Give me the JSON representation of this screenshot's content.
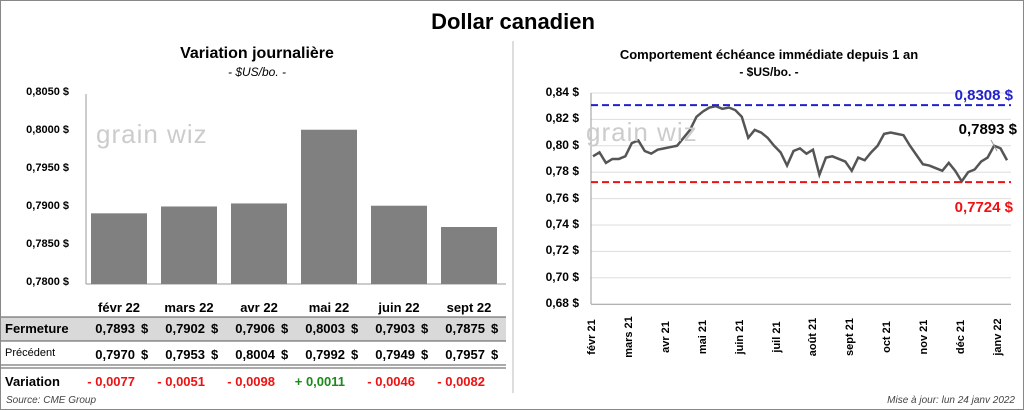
{
  "title": "Dollar canadien",
  "watermark": "grainwiz",
  "chart_data": [
    {
      "type": "bar",
      "title": "Variation  journalière",
      "subtitle": "- $US/bo. -",
      "categories": [
        "févr 22",
        "mars 22",
        "avr 22",
        "mai 22",
        "juin 22",
        "sept 22"
      ],
      "values": [
        0.7893,
        0.7902,
        0.7906,
        0.8003,
        0.7903,
        0.7875
      ],
      "ylim": [
        0.78,
        0.805
      ],
      "yticks": [
        "0,8050 $",
        "0,8000 $",
        "0,7950 $",
        "0,7900 $",
        "0,7850 $",
        "0,7800 $"
      ],
      "color": "#808080",
      "table": {
        "rows": [
          {
            "label": "Fermeture",
            "values": [
              "0,7893",
              "0,7902",
              "0,7906",
              "0,8003",
              "0,7903",
              "0,7875"
            ]
          },
          {
            "label": "Précédent",
            "values": [
              "0,7970",
              "0,7953",
              "0,8004",
              "0,7992",
              "0,7949",
              "0,7957"
            ]
          },
          {
            "label": "Variation",
            "values": [
              "- 0,0077",
              "- 0,0051",
              "- 0,0098",
              "+ 0,0011",
              "- 0,0046",
              "- 0,0082"
            ]
          }
        ],
        "currency": "$"
      },
      "source": "Source: CME Group"
    },
    {
      "type": "line",
      "title": "Comportement échéance immédiate depuis 1 an",
      "subtitle": "- $US/bo. -",
      "ylim": [
        0.68,
        0.84
      ],
      "yticks": [
        "0,84 $",
        "0,82 $",
        "0,80 $",
        "0,78 $",
        "0,76 $",
        "0,74 $",
        "0,72 $",
        "0,70 $",
        "0,68 $"
      ],
      "xticks": [
        "févr 21",
        "mars 21",
        "avr 21",
        "mai 21",
        "juin 21",
        "juil 21",
        "août 21",
        "sept 21",
        "oct 21",
        "nov 21",
        "déc 21",
        "janv 22"
      ],
      "values": [
        0.792,
        0.795,
        0.787,
        0.79,
        0.79,
        0.792,
        0.802,
        0.804,
        0.796,
        0.794,
        0.797,
        0.798,
        0.799,
        0.8,
        0.806,
        0.812,
        0.822,
        0.826,
        0.829,
        0.83,
        0.828,
        0.829,
        0.827,
        0.822,
        0.806,
        0.812,
        0.81,
        0.806,
        0.8,
        0.795,
        0.785,
        0.796,
        0.798,
        0.794,
        0.797,
        0.778,
        0.791,
        0.792,
        0.79,
        0.788,
        0.781,
        0.791,
        0.789,
        0.795,
        0.8,
        0.809,
        0.81,
        0.809,
        0.808,
        0.8,
        0.793,
        0.786,
        0.785,
        0.783,
        0.781,
        0.787,
        0.781,
        0.773,
        0.78,
        0.782,
        0.788,
        0.791,
        0.8,
        0.798,
        0.789
      ],
      "max": {
        "value": 0.8308,
        "label": "0,8308  $",
        "color": "#2222cc"
      },
      "min": {
        "value": 0.7724,
        "label": "0,7724  $",
        "color": "#ee1111"
      },
      "last_label": "0,7893 $",
      "updated": "Mise à jour: lun 24 janv 2022"
    }
  ]
}
